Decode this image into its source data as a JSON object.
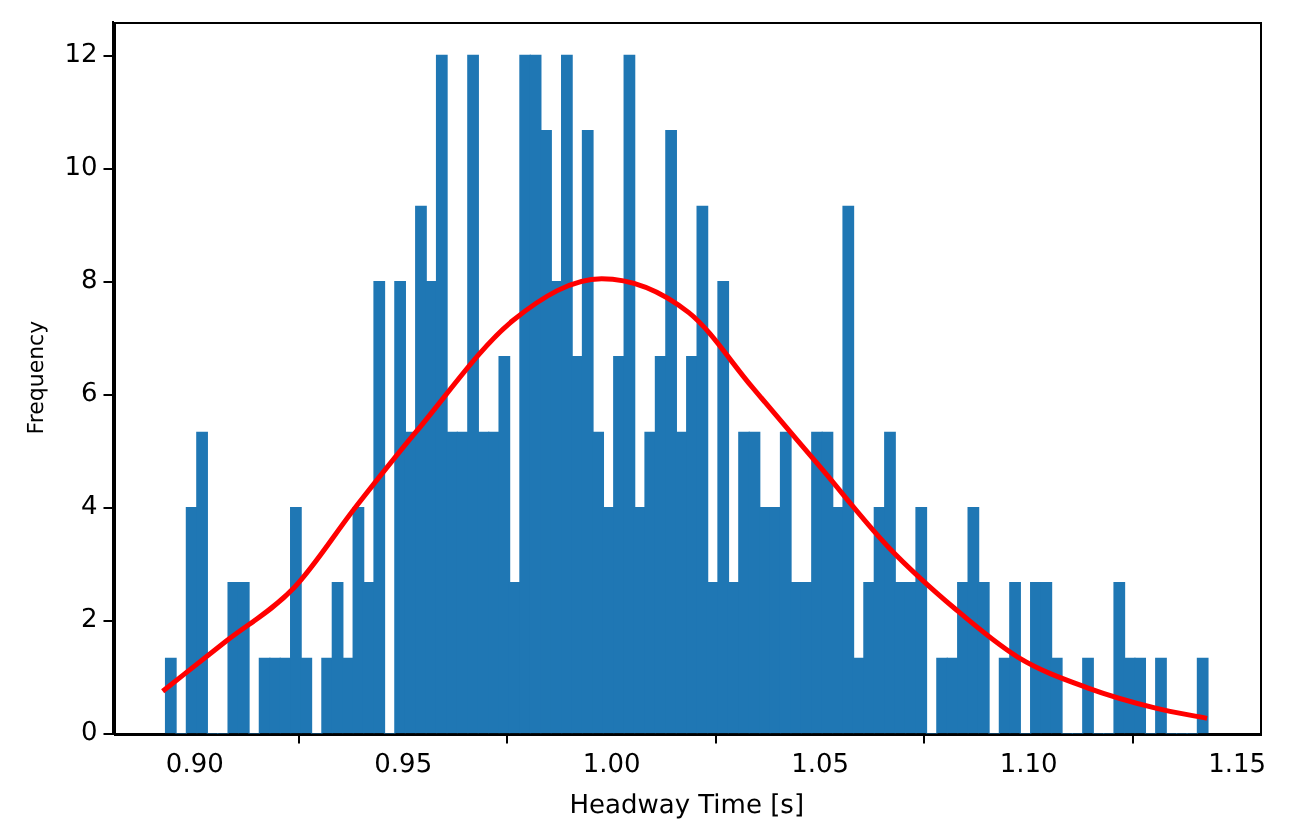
{
  "chart_data": {
    "type": "histogram",
    "xlabel": "Headway Time [s]",
    "ylabel": "Frequency",
    "bins": [
      0.893,
      0.8955,
      0.898,
      0.9005,
      0.903,
      0.9055,
      0.908,
      0.9105,
      0.913,
      0.9155,
      0.918,
      0.9205,
      0.923,
      0.9255,
      0.928,
      0.9305,
      0.933,
      0.9355,
      0.938,
      0.9405,
      0.943,
      0.9455,
      0.948,
      0.9505,
      0.953,
      0.9555,
      0.958,
      0.9605,
      0.963,
      0.9655,
      0.968,
      0.9705,
      0.973,
      0.9755,
      0.978,
      0.9805,
      0.983,
      0.9855,
      0.988,
      0.9905,
      0.993,
      0.9955,
      0.998,
      1.0005,
      1.003,
      1.0055,
      1.008,
      1.0105,
      1.013,
      1.0155,
      1.018,
      1.0205,
      1.023,
      1.0255,
      1.028,
      1.0305,
      1.033,
      1.0355,
      1.038,
      1.0405,
      1.043,
      1.0455,
      1.048,
      1.0505,
      1.053,
      1.0555,
      1.058,
      1.0605,
      1.063,
      1.0655,
      1.068,
      1.0705,
      1.073,
      1.0755,
      1.078,
      1.0805,
      1.083,
      1.0855,
      1.088,
      1.0905,
      1.093,
      1.0955,
      1.098,
      1.1005,
      1.103,
      1.1055,
      1.108,
      1.1105,
      1.113,
      1.1155,
      1.118,
      1.1205,
      1.123,
      1.1255,
      1.128,
      1.1305,
      1.133,
      1.1355,
      1.138,
      1.1405,
      1.143
    ],
    "series": [
      {
        "color": "#1f77b4",
        "values": [
          1.33,
          0,
          4,
          5.33,
          0,
          0,
          2.67,
          2.67,
          0,
          1.33,
          1.33,
          1.33,
          4,
          1.33,
          0,
          1.33,
          2.67,
          1.33,
          4,
          2.67,
          8,
          0,
          8,
          5.33,
          9.33,
          8,
          12,
          5.33,
          5.33,
          12,
          5.33,
          5.33,
          6.67,
          2.67,
          12,
          12,
          10.67,
          8,
          12,
          6.67,
          10.67,
          5.33,
          4,
          6.67,
          12,
          4,
          5.33,
          6.67,
          10.67,
          5.33,
          6.67,
          9.33,
          2.67,
          8,
          2.67,
          5.33,
          5.33,
          4,
          4,
          5.33,
          2.67,
          2.67,
          5.33,
          5.33,
          4,
          9.33,
          1.33,
          2.67,
          4,
          5.33,
          2.67,
          2.67,
          4,
          0,
          1.33,
          1.33,
          2.67,
          4,
          2.67,
          0,
          1.33,
          2.67,
          0,
          2.67,
          2.67,
          1.33,
          0,
          0,
          1.33,
          0,
          0,
          2.67,
          1.33,
          1.33,
          0,
          1.33,
          0,
          0,
          0,
          1.33
        ]
      },
      {
        "type": "line",
        "color": "#ff0000",
        "x": [
          0.8923,
          0.9074,
          0.9238,
          0.9385,
          0.9533,
          0.9763,
          0.9976,
          1.0185,
          1.0337,
          1.0501,
          1.0665,
          1.0825,
          1.0977,
          1.1141,
          1.1305,
          1.1428
        ],
        "values": [
          0.75,
          1.63,
          2.58,
          4.0,
          5.36,
          7.31,
          8.05,
          7.45,
          6.13,
          4.71,
          3.29,
          2.2,
          1.34,
          0.81,
          0.45,
          0.27
        ]
      }
    ],
    "xlim": [
      0.8805,
      1.1555
    ],
    "xticks": [
      {
        "value": 0.9,
        "label": "0.90"
      },
      {
        "value": 0.95,
        "label": "0.95"
      },
      {
        "value": 1.0,
        "label": "1.00"
      },
      {
        "value": 1.05,
        "label": "1.05"
      },
      {
        "value": 1.1,
        "label": "1.10"
      },
      {
        "value": 1.15,
        "label": "1.15"
      }
    ],
    "ylim": [
      0,
      12.6
    ],
    "yticks": [
      0,
      2,
      4,
      6,
      8,
      10,
      12
    ],
    "grid": false,
    "legend": false,
    "marker": "none",
    "line_style": "solid"
  }
}
